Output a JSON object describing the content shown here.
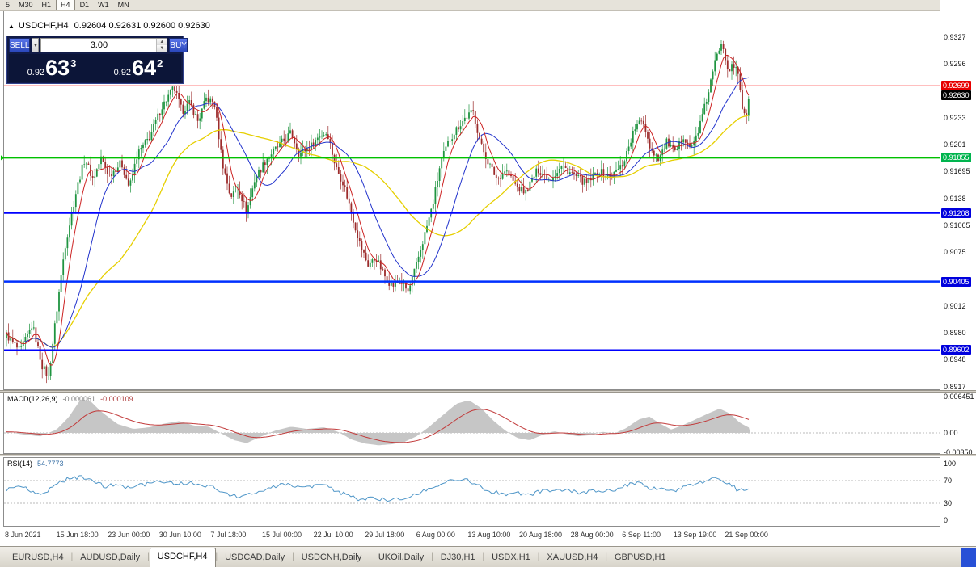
{
  "top_toolbar": {
    "periods": [
      "5",
      "M30",
      "H1",
      "H4",
      "D1",
      "W1",
      "MN"
    ],
    "active_period": "H4"
  },
  "chart": {
    "title": "USDCHF,H4",
    "ohlc": "0.92604 0.92631 0.92600 0.92630",
    "open": "0.92604",
    "high": "0.92631",
    "low": "0.92600",
    "close": "0.92630"
  },
  "one_click": {
    "sell_label": "SELL",
    "buy_label": "BUY",
    "lot_value": "3.00",
    "sell_price_prefix": "0.92",
    "sell_price_big": "63",
    "sell_price_sup": "3",
    "buy_price_prefix": "0.92",
    "buy_price_big": "64",
    "buy_price_sup": "2"
  },
  "price_scale": {
    "ticks": [
      {
        "text": "0.9327",
        "price": 0.9327
      },
      {
        "text": "0.9296",
        "price": 0.92955
      },
      {
        "text": "0.9233",
        "price": 0.92325
      },
      {
        "text": "0.9201",
        "price": 0.9201
      },
      {
        "text": "0.91695",
        "price": 0.91695
      },
      {
        "text": "0.9138",
        "price": 0.9138
      },
      {
        "text": "0.91065",
        "price": 0.91065
      },
      {
        "text": "0.9075",
        "price": 0.9075
      },
      {
        "text": "0.9012",
        "price": 0.9012
      },
      {
        "text": "0.8980",
        "price": 0.89805
      },
      {
        "text": "0.8948",
        "price": 0.8949
      },
      {
        "text": "0.8917",
        "price": 0.89175
      }
    ],
    "badges": [
      {
        "text": "0.92699",
        "price": 0.92699,
        "bg": "#e60000",
        "fg": "#ffffff"
      },
      {
        "text": "0.92630",
        "price": 0.9263,
        "bg": "#000000",
        "fg": "#ffffff"
      },
      {
        "text": "0.91855",
        "price": 0.91855,
        "bg": "#00b44e",
        "fg": "#ffffff"
      },
      {
        "text": "0.91208",
        "price": 0.91208,
        "bg": "#0000dd",
        "fg": "#ffffff"
      },
      {
        "text": "0.90405",
        "price": 0.90405,
        "bg": "#0000dd",
        "fg": "#ffffff"
      },
      {
        "text": "0.89602",
        "price": 0.89602,
        "bg": "#0000dd",
        "fg": "#ffffff"
      }
    ]
  },
  "hlines": [
    {
      "price": 0.92699,
      "color": "#ff0000",
      "width": 1.2
    },
    {
      "price": 0.91855,
      "color": "#00c000",
      "width": 2
    },
    {
      "price": 0.91208,
      "color": "#0000ff",
      "width": 1.8
    },
    {
      "price": 0.90405,
      "color": "#0030ff",
      "width": 2.5
    },
    {
      "price": 0.89602,
      "color": "#0000ff",
      "width": 1.8
    }
  ],
  "macd": {
    "label": "MACD(12,26,9)",
    "v1": "-0.000061",
    "v2": "-0.000109",
    "axis": [
      "0.006451",
      "0.00",
      "-0.00350"
    ]
  },
  "rsi": {
    "label": "RSI(14)",
    "value": "54.7773",
    "axis": [
      "100",
      "70",
      "30",
      "0"
    ],
    "levels": [
      70,
      30
    ]
  },
  "bottom_tabs": {
    "tabs": [
      "EURUSD,H4",
      "AUDUSD,Daily",
      "USDCHF,H4",
      "USDCAD,Daily",
      "USDCNH,Daily",
      "UKOil,Daily",
      "DJ30,H1",
      "USDX,H1",
      "XAUUSD,H4",
      "GBPUSD,H1"
    ],
    "active": "USDCHF,H4"
  },
  "accent_colors": {
    "up_candle": "#1f9440",
    "down_candle": "#9c2b2b",
    "macd_hist": "#c6c6c6",
    "macd_signal": "#c23b3b",
    "rsi_line": "#4f96c8",
    "corner_blue": "#2750d6"
  },
  "chart_data": {
    "type": "candlestick",
    "symbol": "USDCHF",
    "timeframe": "H4",
    "price_range_visible": [
      0.8917,
      0.9327
    ],
    "last_price": 0.9263,
    "x_tick_labels": [
      "8 Jun 2021",
      "15 Jun 18:00",
      "23 Jun 00:00",
      "30 Jun 10:00",
      "7 Jul 18:00",
      "15 Jul 00:00",
      "22 Jul 10:00",
      "29 Jul 18:00",
      "6 Aug 00:00",
      "13 Aug 10:00",
      "20 Aug 18:00",
      "28 Aug 00:00",
      "6 Sep 11:00",
      "13 Sep 19:00",
      "21 Sep 00:00"
    ],
    "price_anchors": [
      [
        8,
        0.8978
      ],
      [
        25,
        0.8958
      ],
      [
        40,
        0.899
      ],
      [
        52,
        0.8942
      ],
      [
        60,
        0.8928
      ],
      [
        68,
        0.899
      ],
      [
        80,
        0.908
      ],
      [
        95,
        0.915
      ],
      [
        105,
        0.9185
      ],
      [
        115,
        0.916
      ],
      [
        125,
        0.9185
      ],
      [
        135,
        0.9165
      ],
      [
        150,
        0.918
      ],
      [
        160,
        0.915
      ],
      [
        170,
        0.919
      ],
      [
        185,
        0.921
      ],
      [
        200,
        0.9245
      ],
      [
        215,
        0.9268
      ],
      [
        225,
        0.924
      ],
      [
        235,
        0.925
      ],
      [
        245,
        0.9228
      ],
      [
        255,
        0.9255
      ],
      [
        265,
        0.925
      ],
      [
        275,
        0.918
      ],
      [
        285,
        0.914
      ],
      [
        295,
        0.915
      ],
      [
        305,
        0.9122
      ],
      [
        315,
        0.916
      ],
      [
        330,
        0.9185
      ],
      [
        345,
        0.92
      ],
      [
        360,
        0.9215
      ],
      [
        370,
        0.919
      ],
      [
        385,
        0.92
      ],
      [
        395,
        0.9212
      ],
      [
        405,
        0.9215
      ],
      [
        415,
        0.9175
      ],
      [
        425,
        0.9155
      ],
      [
        435,
        0.912
      ],
      [
        445,
        0.9085
      ],
      [
        455,
        0.906
      ],
      [
        465,
        0.9068
      ],
      [
        475,
        0.9048
      ],
      [
        485,
        0.9035
      ],
      [
        495,
        0.9042
      ],
      [
        505,
        0.9028
      ],
      [
        515,
        0.906
      ],
      [
        525,
        0.9095
      ],
      [
        535,
        0.913
      ],
      [
        545,
        0.918
      ],
      [
        555,
        0.9205
      ],
      [
        565,
        0.922
      ],
      [
        575,
        0.9232
      ],
      [
        585,
        0.924
      ],
      [
        595,
        0.92
      ],
      [
        605,
        0.9178
      ],
      [
        615,
        0.916
      ],
      [
        625,
        0.9172
      ],
      [
        640,
        0.915
      ],
      [
        650,
        0.9145
      ],
      [
        665,
        0.9172
      ],
      [
        680,
        0.916
      ],
      [
        695,
        0.9176
      ],
      [
        710,
        0.9165
      ],
      [
        725,
        0.9155
      ],
      [
        740,
        0.917
      ],
      [
        755,
        0.9162
      ],
      [
        770,
        0.9178
      ],
      [
        785,
        0.922
      ],
      [
        795,
        0.923
      ],
      [
        805,
        0.9195
      ],
      [
        815,
        0.9185
      ],
      [
        825,
        0.9205
      ],
      [
        835,
        0.919
      ],
      [
        845,
        0.9212
      ],
      [
        855,
        0.9196
      ],
      [
        865,
        0.9222
      ],
      [
        875,
        0.9258
      ],
      [
        885,
        0.93
      ],
      [
        893,
        0.9325
      ],
      [
        900,
        0.929
      ],
      [
        907,
        0.9292
      ],
      [
        913,
        0.9285
      ],
      [
        918,
        0.9245
      ],
      [
        923,
        0.9235
      ],
      [
        928,
        0.9263
      ]
    ],
    "moving_averages": [
      {
        "name": "fast",
        "color": "#cc2222",
        "window": 7,
        "stroke": 1
      },
      {
        "name": "medium",
        "color": "#2233cc",
        "window": 22,
        "stroke": 1
      },
      {
        "name": "slow",
        "color": "#e6cf00",
        "window": 55,
        "stroke": 1.3
      }
    ],
    "macd_anchors": [
      [
        8,
        0.0002
      ],
      [
        30,
        -0.0003
      ],
      [
        50,
        -0.0006
      ],
      [
        70,
        0.0006
      ],
      [
        85,
        0.0028
      ],
      [
        100,
        0.006
      ],
      [
        112,
        0.0056
      ],
      [
        125,
        0.0038
      ],
      [
        145,
        0.0016
      ],
      [
        165,
        0.0007
      ],
      [
        185,
        0.001
      ],
      [
        205,
        0.0017
      ],
      [
        222,
        0.0021
      ],
      [
        240,
        0.0013
      ],
      [
        258,
        0.0011
      ],
      [
        275,
        -0.0002
      ],
      [
        290,
        -0.0013
      ],
      [
        305,
        -0.0018
      ],
      [
        322,
        -0.0007
      ],
      [
        340,
        0.0004
      ],
      [
        360,
        0.0011
      ],
      [
        380,
        0.0007
      ],
      [
        400,
        0.001
      ],
      [
        418,
        0.0002
      ],
      [
        435,
        -0.0012
      ],
      [
        452,
        -0.0019
      ],
      [
        468,
        -0.0022
      ],
      [
        485,
        -0.002
      ],
      [
        500,
        -0.0016
      ],
      [
        515,
        -0.0006
      ],
      [
        530,
        0.001
      ],
      [
        548,
        0.0032
      ],
      [
        565,
        0.0052
      ],
      [
        580,
        0.0058
      ],
      [
        595,
        0.0044
      ],
      [
        610,
        0.0022
      ],
      [
        625,
        0.0004
      ],
      [
        640,
        -0.0009
      ],
      [
        655,
        -0.0013
      ],
      [
        670,
        -0.0004
      ],
      [
        685,
        0.0003
      ],
      [
        700,
        -0.0002
      ],
      [
        715,
        -0.0006
      ],
      [
        730,
        -0.0004
      ],
      [
        745,
        0.0002
      ],
      [
        760,
        -0.0001
      ],
      [
        775,
        0.0009
      ],
      [
        790,
        0.0024
      ],
      [
        803,
        0.0029
      ],
      [
        817,
        0.0016
      ],
      [
        830,
        0.0006
      ],
      [
        845,
        0.0014
      ],
      [
        860,
        0.0024
      ],
      [
        875,
        0.0034
      ],
      [
        890,
        0.0043
      ],
      [
        903,
        0.0034
      ],
      [
        915,
        0.0018
      ],
      [
        928,
        0.0008
      ]
    ],
    "macd_axis_range": [
      -0.0035,
      0.006451
    ],
    "rsi_anchors": [
      [
        8,
        55
      ],
      [
        25,
        60
      ],
      [
        40,
        50
      ],
      [
        55,
        44
      ],
      [
        70,
        66
      ],
      [
        85,
        73
      ],
      [
        100,
        76
      ],
      [
        115,
        68
      ],
      [
        130,
        60
      ],
      [
        145,
        64
      ],
      [
        160,
        56
      ],
      [
        175,
        62
      ],
      [
        190,
        66
      ],
      [
        205,
        69
      ],
      [
        220,
        64
      ],
      [
        235,
        66
      ],
      [
        250,
        62
      ],
      [
        265,
        58
      ],
      [
        280,
        46
      ],
      [
        295,
        42
      ],
      [
        310,
        46
      ],
      [
        325,
        54
      ],
      [
        340,
        60
      ],
      [
        355,
        64
      ],
      [
        370,
        56
      ],
      [
        385,
        60
      ],
      [
        400,
        62
      ],
      [
        415,
        52
      ],
      [
        430,
        44
      ],
      [
        445,
        36
      ],
      [
        460,
        40
      ],
      [
        475,
        36
      ],
      [
        490,
        38
      ],
      [
        505,
        40
      ],
      [
        520,
        50
      ],
      [
        535,
        58
      ],
      [
        550,
        66
      ],
      [
        565,
        74
      ],
      [
        580,
        70
      ],
      [
        595,
        58
      ],
      [
        610,
        50
      ],
      [
        625,
        46
      ],
      [
        640,
        48
      ],
      [
        655,
        44
      ],
      [
        670,
        52
      ],
      [
        685,
        50
      ],
      [
        700,
        54
      ],
      [
        715,
        48
      ],
      [
        730,
        52
      ],
      [
        745,
        50
      ],
      [
        760,
        54
      ],
      [
        775,
        62
      ],
      [
        790,
        68
      ],
      [
        805,
        56
      ],
      [
        820,
        58
      ],
      [
        835,
        52
      ],
      [
        850,
        60
      ],
      [
        865,
        66
      ],
      [
        880,
        74
      ],
      [
        893,
        70
      ],
      [
        903,
        66
      ],
      [
        913,
        52
      ],
      [
        921,
        56
      ],
      [
        928,
        55
      ]
    ]
  }
}
